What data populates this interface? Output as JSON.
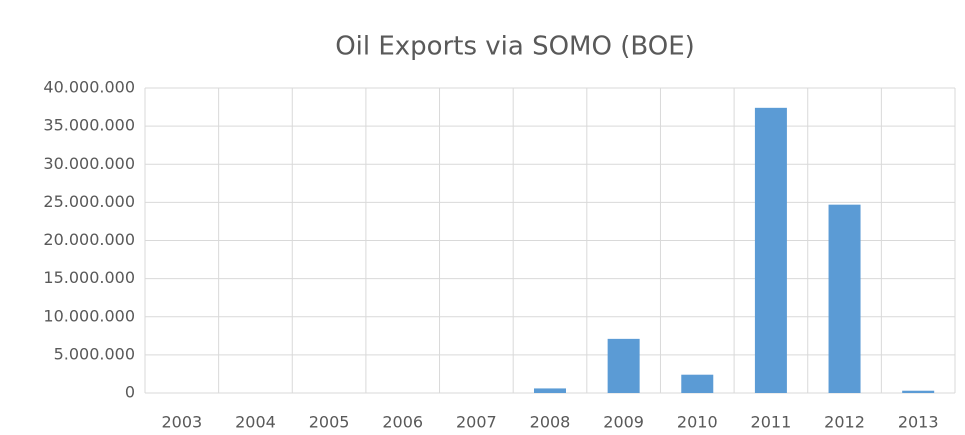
{
  "chart_data": {
    "type": "bar",
    "title": "Oil Exports via SOMO (BOE)",
    "categories": [
      "2003",
      "2004",
      "2005",
      "2006",
      "2007",
      "2008",
      "2009",
      "2010",
      "2011",
      "2012",
      "2013"
    ],
    "values": [
      0,
      0,
      0,
      0,
      0,
      600000,
      7100000,
      2400000,
      37400000,
      24700000,
      300000
    ],
    "color": "#5b9bd5",
    "ylim": [
      0,
      40000000
    ],
    "yticks": [
      0,
      {
        "value": 5000000,
        "label": "5.000.000"
      },
      {
        "value": 10000000,
        "label": "10.000.000"
      },
      {
        "value": 15000000,
        "label": "15.000.000"
      },
      {
        "value": 20000000,
        "label": "20.000.000"
      },
      {
        "value": 25000000,
        "label": "25.000.000"
      },
      {
        "value": 30000000,
        "label": "30.000.000"
      },
      {
        "value": 35000000,
        "label": "35.000.000"
      },
      {
        "value": 40000000,
        "label": "40.000.000"
      }
    ],
    "grid": true
  }
}
